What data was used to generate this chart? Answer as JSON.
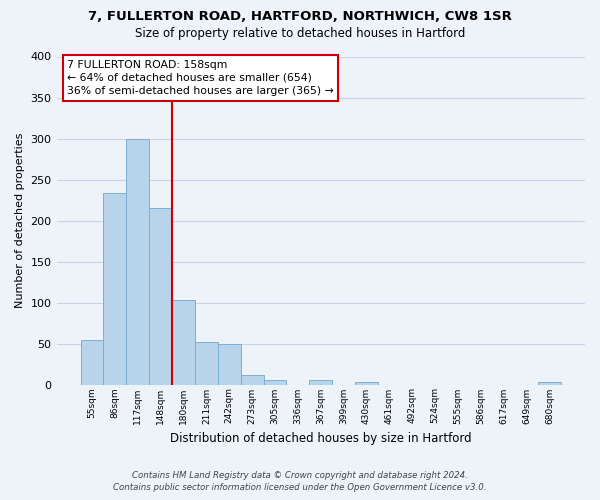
{
  "title1": "7, FULLERTON ROAD, HARTFORD, NORTHWICH, CW8 1SR",
  "title2": "Size of property relative to detached houses in Hartford",
  "xlabel": "Distribution of detached houses by size in Hartford",
  "ylabel": "Number of detached properties",
  "bin_labels": [
    "55sqm",
    "86sqm",
    "117sqm",
    "148sqm",
    "180sqm",
    "211sqm",
    "242sqm",
    "273sqm",
    "305sqm",
    "336sqm",
    "367sqm",
    "399sqm",
    "430sqm",
    "461sqm",
    "492sqm",
    "524sqm",
    "555sqm",
    "586sqm",
    "617sqm",
    "649sqm",
    "680sqm"
  ],
  "bar_values": [
    54,
    233,
    300,
    215,
    103,
    52,
    49,
    11,
    6,
    0,
    5,
    0,
    3,
    0,
    0,
    0,
    0,
    0,
    0,
    0,
    3
  ],
  "bar_color": "#b8d4ea",
  "bar_edge_color": "#7aafd4",
  "marker_bar_index": 3,
  "ylim": [
    0,
    400
  ],
  "yticks": [
    0,
    50,
    100,
    150,
    200,
    250,
    300,
    350,
    400
  ],
  "annotation_title": "7 FULLERTON ROAD: 158sqm",
  "annotation_line1": "← 64% of detached houses are smaller (654)",
  "annotation_line2": "36% of semi-detached houses are larger (365) →",
  "footer1": "Contains HM Land Registry data © Crown copyright and database right 2024.",
  "footer2": "Contains public sector information licensed under the Open Government Licence v3.0.",
  "background_color": "#eef2f9",
  "grid_color": "#c8d4e8",
  "red_line_color": "#cc0000"
}
